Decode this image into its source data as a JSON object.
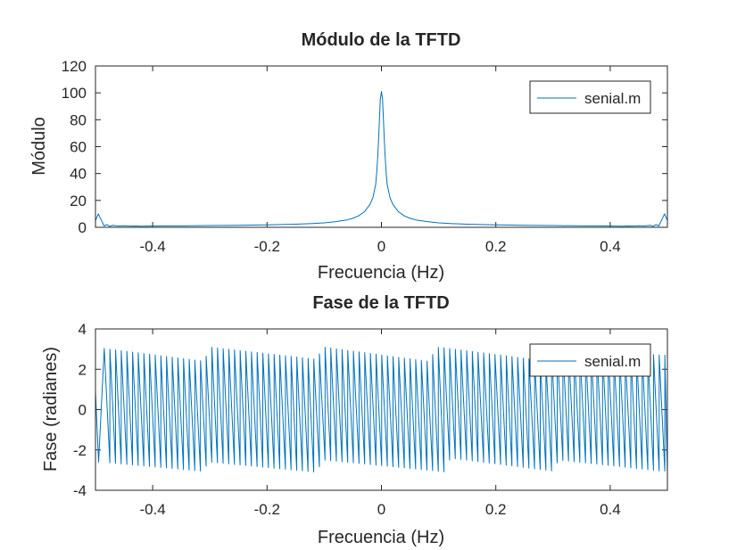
{
  "chart_data": [
    {
      "type": "line",
      "title": "Módulo de la TFTD",
      "xlabel": "Frecuencia (Hz)",
      "ylabel": "Módulo",
      "xlim": [
        -0.5,
        0.5
      ],
      "ylim": [
        0,
        120
      ],
      "xticks": [
        -0.4,
        -0.2,
        0,
        0.2,
        0.4
      ],
      "xtick_labels": [
        "-0.4",
        "-0.2",
        "0",
        "0.2",
        "0.4"
      ],
      "yticks": [
        0,
        20,
        40,
        60,
        80,
        100,
        120
      ],
      "ytick_labels": [
        "0",
        "20",
        "40",
        "60",
        "80",
        "100",
        "120"
      ],
      "grid": false,
      "legend_position": "top-right",
      "series": [
        {
          "name": "senial.m",
          "color": "#0072bd",
          "x": [
            -0.5,
            -0.495,
            -0.49,
            -0.485,
            -0.48,
            -0.475,
            -0.47,
            -0.46,
            -0.45,
            -0.44,
            -0.43,
            -0.42,
            -0.4,
            -0.35,
            -0.3,
            -0.25,
            -0.2,
            -0.15,
            -0.12,
            -0.1,
            -0.08,
            -0.06,
            -0.05,
            -0.04,
            -0.03,
            -0.02,
            -0.015,
            -0.01,
            -0.008,
            -0.006,
            -0.004,
            -0.002,
            0,
            0.002,
            0.004,
            0.006,
            0.008,
            0.01,
            0.015,
            0.02,
            0.03,
            0.04,
            0.05,
            0.06,
            0.08,
            0.1,
            0.12,
            0.15,
            0.2,
            0.25,
            0.3,
            0.35,
            0.4,
            0.42,
            0.43,
            0.44,
            0.45,
            0.46,
            0.47,
            0.475,
            0.48,
            0.485,
            0.49,
            0.495,
            0.5
          ],
          "y": [
            5,
            10,
            5.5,
            1,
            2,
            0.7,
            1.5,
            1,
            1.2,
            0.9,
            1,
            0.8,
            1,
            1.1,
            1.3,
            1.5,
            1.8,
            2.3,
            2.8,
            3.3,
            4.2,
            5.5,
            6.7,
            8.5,
            11.5,
            17,
            22,
            32,
            42,
            56,
            75,
            95,
            101,
            95,
            75,
            56,
            42,
            32,
            22,
            17,
            11.5,
            8.5,
            6.7,
            5.5,
            4.2,
            3.3,
            2.8,
            2.3,
            1.8,
            1.5,
            1.3,
            1.1,
            1,
            0.8,
            1,
            0.9,
            1.2,
            1,
            1.5,
            0.7,
            2,
            1,
            5.5,
            10,
            5
          ]
        }
      ]
    },
    {
      "type": "line",
      "title": "Fase de la TFTD",
      "xlabel": "Frecuencia (Hz)",
      "ylabel": "Fase (radianes)",
      "xlim": [
        -0.5,
        0.5
      ],
      "ylim": [
        -4,
        4
      ],
      "xticks": [
        -0.4,
        -0.2,
        0,
        0.2,
        0.4
      ],
      "xtick_labels": [
        "-0.4",
        "-0.2",
        "0",
        "0.2",
        "0.4"
      ],
      "yticks": [
        -4,
        -2,
        0,
        2,
        4
      ],
      "ytick_labels": [
        "-4",
        "-2",
        "0",
        "2",
        "4"
      ],
      "grid": false,
      "legend_position": "top-right",
      "series": [
        {
          "name": "senial.m",
          "color": "#0072bd",
          "pattern": "sawtooth",
          "cycles": 101,
          "x_start": -0.5,
          "x_end": 0.5,
          "phase_start": 0.9,
          "phase_end": -0.9,
          "upper_envelope": [
            [
              -0.49,
              3.05
            ],
            [
              -0.31,
              2.4
            ],
            [
              -0.3,
              3.1
            ],
            [
              -0.115,
              2.5
            ],
            [
              -0.1,
              3.1
            ],
            [
              0.08,
              2.4
            ],
            [
              0.1,
              3.1
            ],
            [
              0.29,
              2.4
            ],
            [
              0.3,
              3.05
            ],
            [
              0.49,
              2.7
            ]
          ],
          "lower_envelope": [
            [
              -0.49,
              -2.6
            ],
            [
              -0.315,
              -3.05
            ],
            [
              -0.3,
              -2.6
            ],
            [
              -0.115,
              -3.1
            ],
            [
              -0.1,
              -2.5
            ],
            [
              0.115,
              -3.1
            ],
            [
              0.12,
              -2.4
            ],
            [
              0.3,
              -3.05
            ],
            [
              0.31,
              -2.5
            ],
            [
              0.49,
              -3.05
            ]
          ]
        }
      ]
    }
  ]
}
